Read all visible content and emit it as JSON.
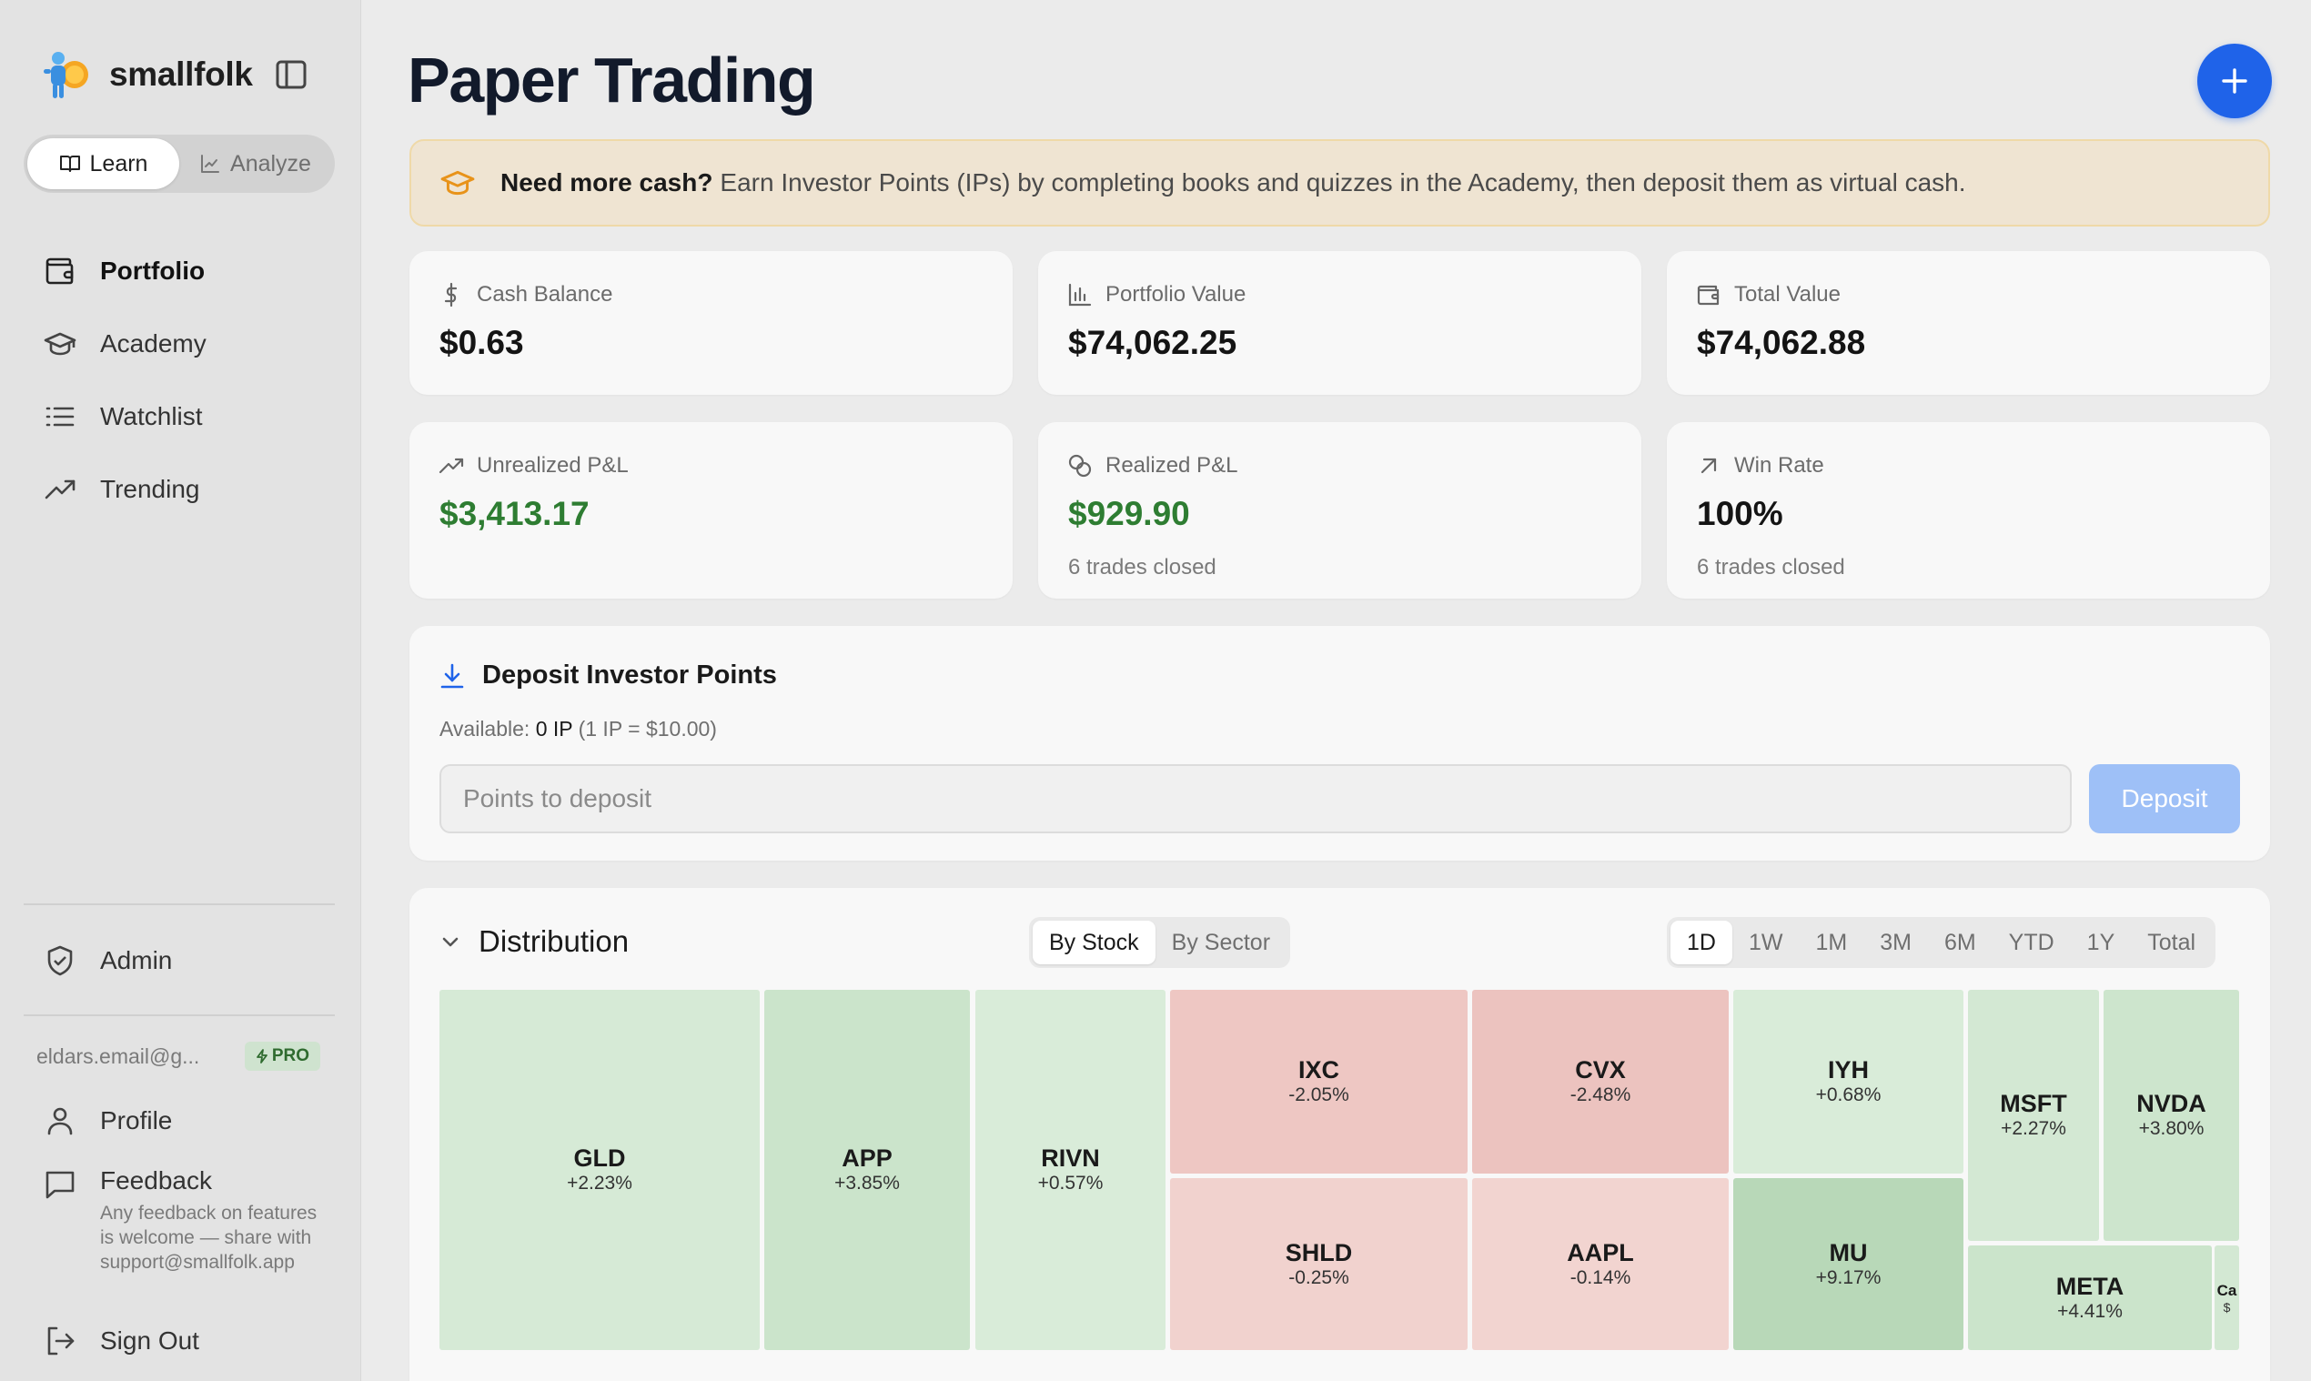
{
  "app": {
    "name": "smallfolk"
  },
  "mode_switch": {
    "learn": "Learn",
    "analyze": "Analyze"
  },
  "nav": [
    {
      "label": "Portfolio",
      "icon": "wallet-icon"
    },
    {
      "label": "Academy",
      "icon": "graduation-cap-icon"
    },
    {
      "label": "Watchlist",
      "icon": "list-icon"
    },
    {
      "label": "Trending",
      "icon": "trending-up-icon"
    }
  ],
  "admin": {
    "label": "Admin"
  },
  "account": {
    "email": "eldars.email@g...",
    "badge": "PRO"
  },
  "profile": {
    "label": "Profile"
  },
  "feedback": {
    "title": "Feedback",
    "desc": "Any feedback on features is welcome — share with support@smallfolk.app"
  },
  "signout": {
    "label": "Sign Out"
  },
  "page": {
    "title": "Paper Trading"
  },
  "banner": {
    "bold": "Need more cash?",
    "text": "Earn Investor Points (IPs) by completing books and quizzes in the Academy, then deposit them as virtual cash."
  },
  "stats": {
    "cash_balance": {
      "label": "Cash Balance",
      "value": "$0.63"
    },
    "portfolio_value": {
      "label": "Portfolio Value",
      "value": "$74,062.25"
    },
    "total_value": {
      "label": "Total Value",
      "value": "$74,062.88"
    },
    "unrealized": {
      "label": "Unrealized P&L",
      "value": "$3,413.17"
    },
    "realized": {
      "label": "Realized P&L",
      "value": "$929.90",
      "sub": "6 trades closed"
    },
    "win_rate": {
      "label": "Win Rate",
      "value": "100%",
      "sub": "6 trades closed"
    }
  },
  "deposit": {
    "title": "Deposit Investor Points",
    "available_label": "Available:",
    "available_value": "0 IP",
    "rate": "(1 IP = $10.00)",
    "placeholder": "Points to deposit",
    "button": "Deposit"
  },
  "distribution": {
    "title": "Distribution",
    "group_by": [
      "By Stock",
      "By Sector"
    ],
    "group_selected": "By Stock",
    "ranges": [
      "1D",
      "1W",
      "1M",
      "3M",
      "6M",
      "YTD",
      "1Y",
      "Total"
    ],
    "range_selected": "1D",
    "tiles": [
      {
        "symbol": "GLD",
        "change": "+2.23%"
      },
      {
        "symbol": "APP",
        "change": "+3.85%"
      },
      {
        "symbol": "RIVN",
        "change": "+0.57%"
      },
      {
        "symbol": "IXC",
        "change": "-2.05%"
      },
      {
        "symbol": "CVX",
        "change": "-2.48%"
      },
      {
        "symbol": "SHLD",
        "change": "-0.25%"
      },
      {
        "symbol": "AAPL",
        "change": "-0.14%"
      },
      {
        "symbol": "IYH",
        "change": "+0.68%"
      },
      {
        "symbol": "MU",
        "change": "+9.17%"
      },
      {
        "symbol": "MSFT",
        "change": "+2.27%"
      },
      {
        "symbol": "NVDA",
        "change": "+3.80%"
      },
      {
        "symbol": "META",
        "change": "+4.41%"
      },
      {
        "symbol": "Ca",
        "change": "$"
      }
    ]
  },
  "colors": {
    "accent": "#1f63e9",
    "positive": "#2e7d32",
    "tile_green_light": "#d6ead6",
    "tile_green_mid": "#cbe4cb",
    "tile_green_dark": "#b8d8b8",
    "tile_red": "#eec7c3",
    "tile_red_light": "#f1d2ce"
  }
}
